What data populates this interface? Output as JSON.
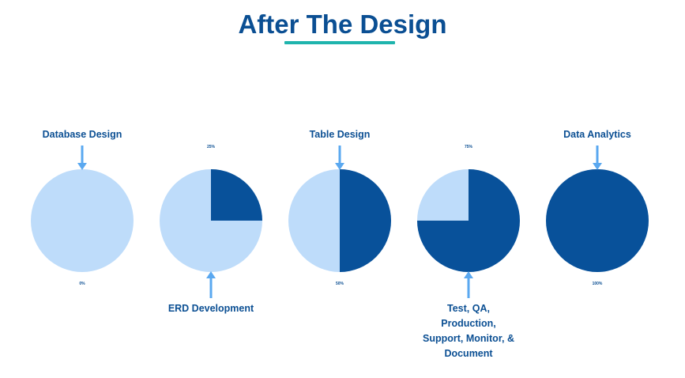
{
  "title": "After The Design",
  "colors": {
    "title": "#0b4f93",
    "underline": "#1fb4ad",
    "pie_empty": "#bedcfa",
    "pie_fill": "#08519a",
    "arrow": "#5aa8f0"
  },
  "chart_data": {
    "type": "pie",
    "stages": [
      {
        "label": "Database Design",
        "value": 0,
        "pct_label": "0%",
        "label_position": "top"
      },
      {
        "label": "ERD Development",
        "value": 25,
        "pct_label": "25%",
        "label_position": "bottom"
      },
      {
        "label": "Table Design",
        "value": 50,
        "pct_label": "50%",
        "label_position": "top"
      },
      {
        "label": "Test, QA,\nProduction,\nSupport, Monitor, &\nDocument",
        "value": 75,
        "pct_label": "75%",
        "label_position": "bottom"
      },
      {
        "label": "Data Analytics",
        "value": 100,
        "pct_label": "100%",
        "label_position": "top"
      }
    ]
  }
}
